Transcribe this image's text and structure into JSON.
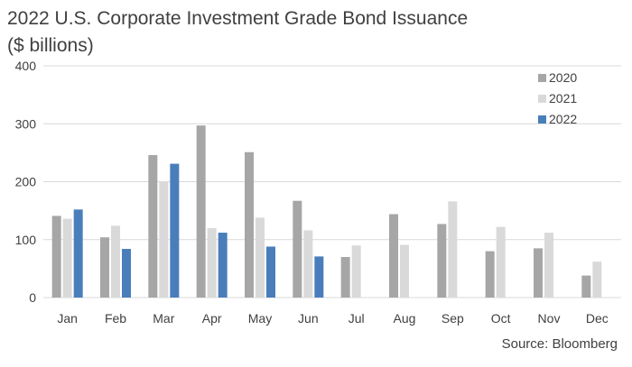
{
  "chart_data": {
    "type": "bar",
    "title": "2022 U.S. Corporate Investment Grade Bond Issuance",
    "subtitle": "($ billions)",
    "source": "Source: Bloomberg",
    "categories": [
      "Jan",
      "Feb",
      "Mar",
      "Apr",
      "May",
      "Jun",
      "Jul",
      "Aug",
      "Sep",
      "Oct",
      "Nov",
      "Dec"
    ],
    "series": [
      {
        "name": "2020",
        "color": "#a6a6a6",
        "values": [
          141,
          104,
          246,
          297,
          251,
          167,
          70,
          144,
          127,
          80,
          85,
          38
        ]
      },
      {
        "name": "2021",
        "color": "#d9d9d9",
        "values": [
          136,
          124,
          200,
          120,
          138,
          116,
          90,
          91,
          166,
          122,
          112,
          62
        ]
      },
      {
        "name": "2022",
        "color": "#4a7ebb",
        "values": [
          152,
          84,
          231,
          112,
          88,
          71,
          null,
          null,
          null,
          null,
          null,
          null
        ]
      }
    ],
    "yticks": [
      0,
      100,
      200,
      300,
      400
    ],
    "ylim": [
      0,
      400
    ],
    "grid": true,
    "legend_position": "top-right"
  }
}
